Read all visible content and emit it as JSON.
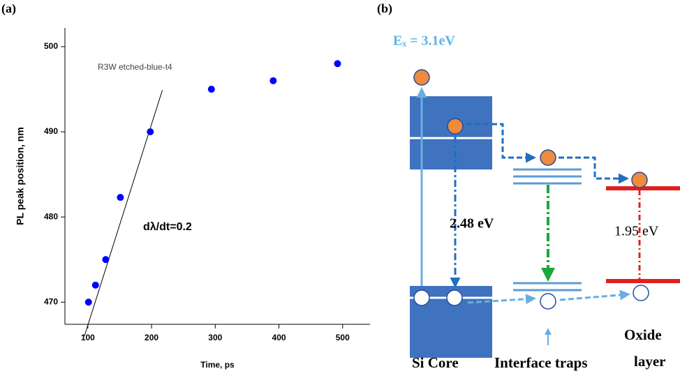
{
  "chart_data": {
    "type": "scatter",
    "panel_label": "(a)",
    "x": [
      101,
      112,
      128,
      151,
      198,
      294,
      391,
      492
    ],
    "values": [
      470,
      472,
      475,
      482.3,
      490,
      495,
      496,
      498
    ],
    "color": "#0000ff",
    "xlim": [
      64,
      543
    ],
    "ylim": [
      467.4,
      502.2
    ],
    "xticks": [
      100,
      200,
      300,
      400,
      500
    ],
    "yticks": [
      470,
      480,
      490,
      500
    ],
    "xlabel": "Time, ps",
    "ylabel": "PL peak position, nm",
    "annotations": [
      "R3W etched-blue-t4",
      "dλ/dt=0.2"
    ],
    "fit_line": {
      "x": [
        94.5,
        217
      ],
      "y": [
        466,
        494.9
      ]
    }
  },
  "diagram": {
    "panel_label": "(b)",
    "excitation": "Eₓ = 3.1eV",
    "energy_core": "2.48 eV",
    "energy_oxide": "1.95 eV",
    "labels": [
      "Si Core",
      "Interface traps",
      "Oxide",
      "layer"
    ]
  }
}
